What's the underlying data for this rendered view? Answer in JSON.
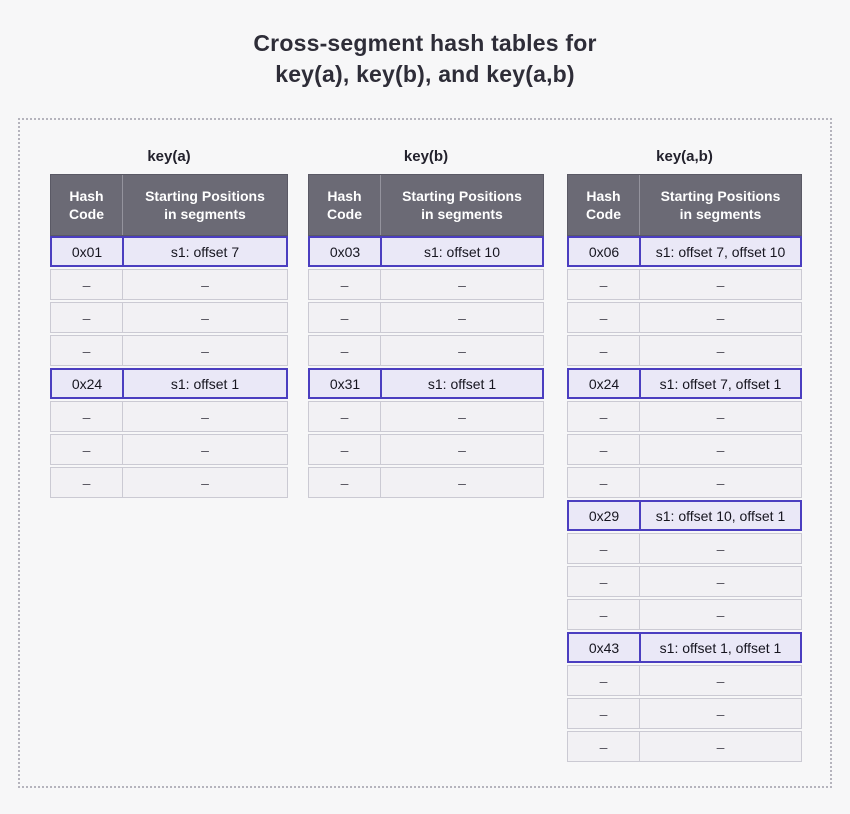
{
  "title": {
    "line1": "Cross-segment hash tables for",
    "line2": "key(a), key(b), and key(a,b)"
  },
  "columns": {
    "hash_code": "Hash\nCode",
    "starting_positions": "Starting Positions\nin segments"
  },
  "colors": {
    "page_bg": "#f7f7f8",
    "header_bg": "#6b6a75",
    "highlight_border": "#4b3ec0",
    "highlight_bg": "#eae8f7",
    "empty_row_bg": "#f2f1f4",
    "empty_row_border": "#cbcad3",
    "dotted_border": "#b5b4bd",
    "title_text": "#2e2d38"
  },
  "tables": [
    {
      "name": "key(a)",
      "rows": [
        {
          "hash": "0x01",
          "positions": "s1: offset 7",
          "highlighted": true
        },
        {
          "hash": "–",
          "positions": "–",
          "highlighted": false
        },
        {
          "hash": "–",
          "positions": "–",
          "highlighted": false
        },
        {
          "hash": "–",
          "positions": "–",
          "highlighted": false
        },
        {
          "hash": "0x24",
          "positions": "s1: offset 1",
          "highlighted": true
        },
        {
          "hash": "–",
          "positions": "–",
          "highlighted": false
        },
        {
          "hash": "–",
          "positions": "–",
          "highlighted": false
        },
        {
          "hash": "–",
          "positions": "–",
          "highlighted": false
        }
      ]
    },
    {
      "name": "key(b)",
      "rows": [
        {
          "hash": "0x03",
          "positions": "s1: offset 10",
          "highlighted": true
        },
        {
          "hash": "–",
          "positions": "–",
          "highlighted": false
        },
        {
          "hash": "–",
          "positions": "–",
          "highlighted": false
        },
        {
          "hash": "–",
          "positions": "–",
          "highlighted": false
        },
        {
          "hash": "0x31",
          "positions": "s1: offset 1",
          "highlighted": true
        },
        {
          "hash": "–",
          "positions": "–",
          "highlighted": false
        },
        {
          "hash": "–",
          "positions": "–",
          "highlighted": false
        },
        {
          "hash": "–",
          "positions": "–",
          "highlighted": false
        }
      ]
    },
    {
      "name": "key(a,b)",
      "rows": [
        {
          "hash": "0x06",
          "positions": "s1: offset 7, offset 10",
          "highlighted": true
        },
        {
          "hash": "–",
          "positions": "–",
          "highlighted": false
        },
        {
          "hash": "–",
          "positions": "–",
          "highlighted": false
        },
        {
          "hash": "–",
          "positions": "–",
          "highlighted": false
        },
        {
          "hash": "0x24",
          "positions": "s1: offset 7, offset 1",
          "highlighted": true
        },
        {
          "hash": "–",
          "positions": "–",
          "highlighted": false
        },
        {
          "hash": "–",
          "positions": "–",
          "highlighted": false
        },
        {
          "hash": "–",
          "positions": "–",
          "highlighted": false
        },
        {
          "hash": "0x29",
          "positions": "s1: offset 10, offset 1",
          "highlighted": true
        },
        {
          "hash": "–",
          "positions": "–",
          "highlighted": false
        },
        {
          "hash": "–",
          "positions": "–",
          "highlighted": false
        },
        {
          "hash": "–",
          "positions": "–",
          "highlighted": false
        },
        {
          "hash": "0x43",
          "positions": "s1: offset 1, offset 1",
          "highlighted": true
        },
        {
          "hash": "–",
          "positions": "–",
          "highlighted": false
        },
        {
          "hash": "–",
          "positions": "–",
          "highlighted": false
        },
        {
          "hash": "–",
          "positions": "–",
          "highlighted": false
        }
      ]
    }
  ]
}
